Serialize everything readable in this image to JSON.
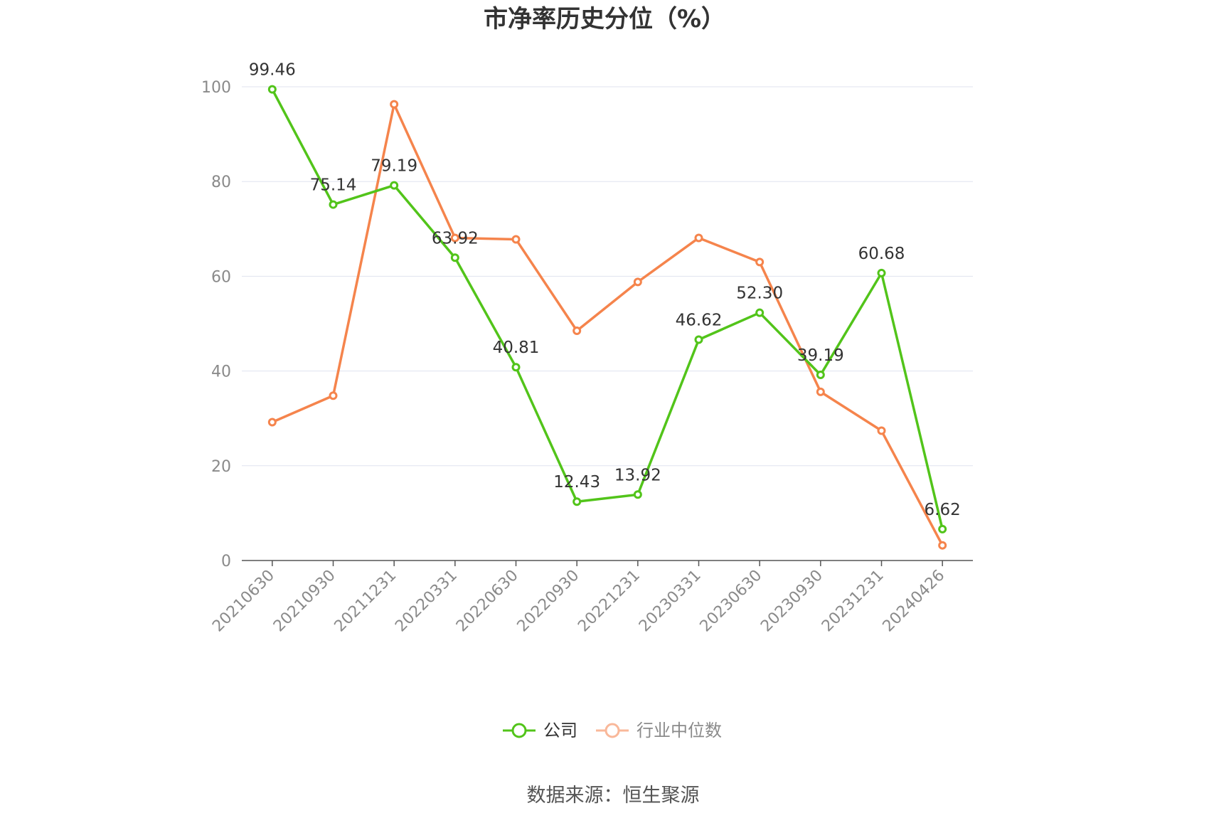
{
  "chart_data": {
    "type": "line",
    "title": "市净率历史分位（%）",
    "categories": [
      "20210630",
      "20210930",
      "20211231",
      "20220331",
      "20220630",
      "20220930",
      "20221231",
      "20230331",
      "20230630",
      "20230930",
      "20231231",
      "20240426"
    ],
    "series": [
      {
        "name": "公司",
        "color": "#52c41a",
        "values": [
          99.46,
          75.14,
          79.19,
          63.92,
          40.81,
          12.43,
          13.92,
          46.62,
          52.3,
          39.19,
          60.68,
          6.62
        ],
        "labels": [
          "99.46",
          "75.14",
          "79.19",
          "63.92",
          "40.81",
          "12.43",
          "13.92",
          "46.62",
          "52.30",
          "39.19",
          "60.68",
          "6.62"
        ]
      },
      {
        "name": "行业中位数",
        "color": "#f5844c",
        "legend_color": "#f9b89a",
        "values": [
          29.2,
          34.8,
          96.3,
          68.1,
          67.8,
          48.5,
          58.8,
          68.1,
          63.0,
          35.6,
          27.4,
          3.2
        ]
      }
    ],
    "ylim": [
      0,
      100
    ],
    "yticks": [
      "0",
      "20",
      "40",
      "60",
      "80",
      "100"
    ],
    "grid": true,
    "legend_position": "bottom"
  },
  "source": "数据来源：恒生聚源"
}
